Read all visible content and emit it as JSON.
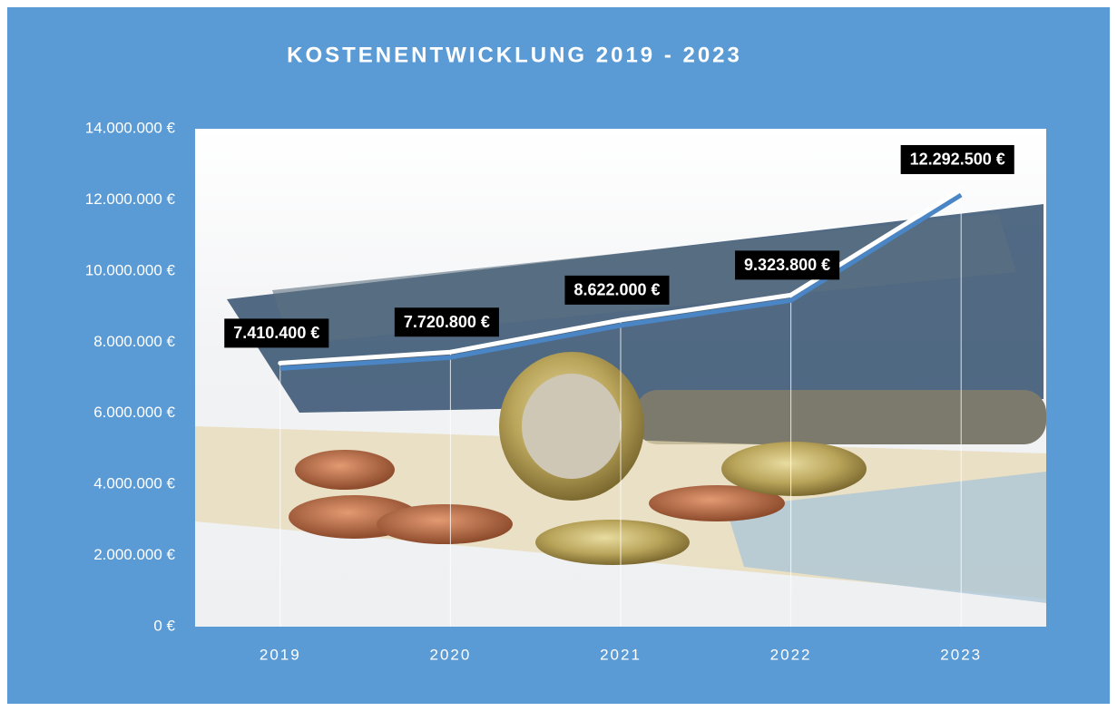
{
  "chart_data": {
    "type": "line",
    "title": "KOSTENENTWICKLUNG 2019 - 2023",
    "categories": [
      "2019",
      "2020",
      "2021",
      "2022",
      "2023"
    ],
    "values": [
      7410400,
      7720800,
      8622000,
      9323800,
      12292500
    ],
    "value_labels": [
      "7.410.400 €",
      "7.720.800 €",
      "8.622.000 €",
      "9.323.800 €",
      "12.292.500 €"
    ],
    "color": "#ffffff",
    "ylim": [
      0,
      14000000
    ],
    "yticks": [
      {
        "value": 0,
        "label": "0 €"
      },
      {
        "value": 2000000,
        "label": "2.000.000 €"
      },
      {
        "value": 4000000,
        "label": "4.000.000 €"
      },
      {
        "value": 6000000,
        "label": "6.000.000 €"
      },
      {
        "value": 8000000,
        "label": "8.000.000 €"
      },
      {
        "value": 10000000,
        "label": "10.000.000 €"
      },
      {
        "value": 12000000,
        "label": "12.000.000 €"
      },
      {
        "value": 14000000,
        "label": "14.000.000 €"
      }
    ],
    "grid": false
  }
}
